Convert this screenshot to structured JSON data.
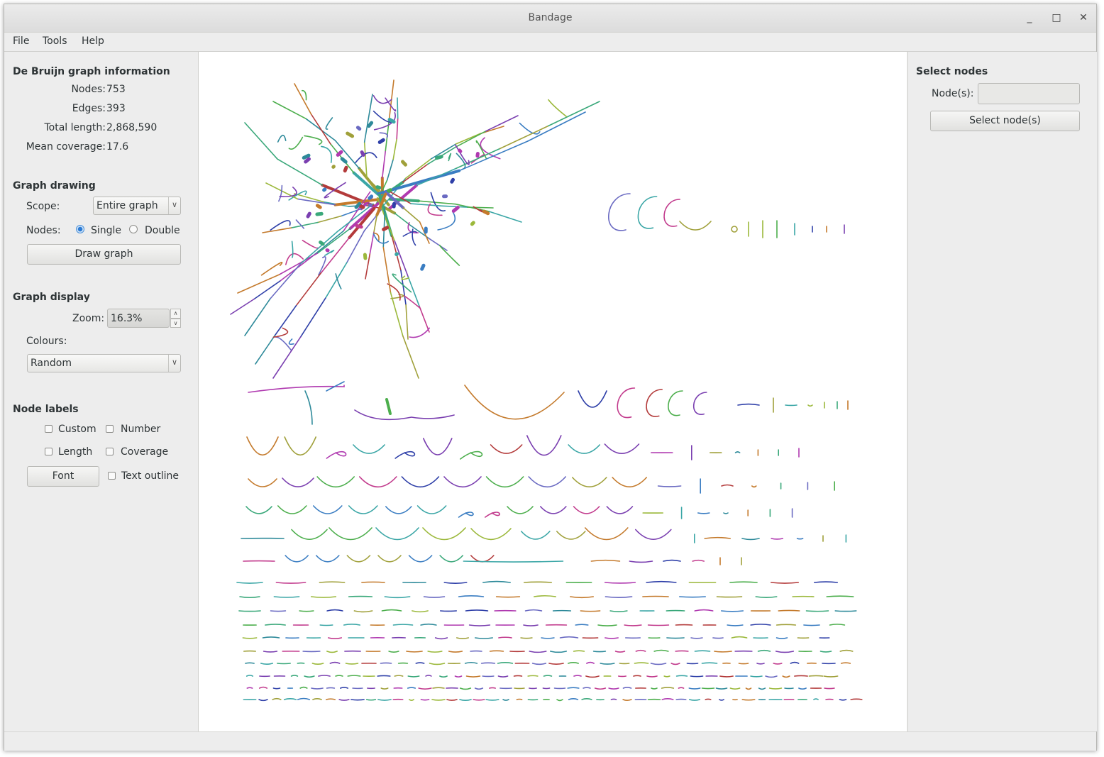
{
  "window": {
    "title": "Bandage",
    "controls": {
      "minimize": "_",
      "maximize": "□",
      "close": "✕"
    }
  },
  "menu": {
    "file": "File",
    "tools": "Tools",
    "help": "Help"
  },
  "info": {
    "heading": "De Bruijn graph information",
    "nodes_label": "Nodes:",
    "nodes_value": "753",
    "edges_label": "Edges:",
    "edges_value": "393",
    "total_length_label": "Total length:",
    "total_length_value": "2,868,590",
    "mean_coverage_label": "Mean coverage:",
    "mean_coverage_value": "17.6"
  },
  "drawing": {
    "heading": "Graph drawing",
    "scope_label": "Scope:",
    "scope_value": "Entire graph",
    "nodes_label": "Nodes:",
    "single": "Single",
    "double": "Double",
    "selected_mode": "Single",
    "draw_button": "Draw graph"
  },
  "display": {
    "heading": "Graph display",
    "zoom_label": "Zoom:",
    "zoom_value": "16.3%",
    "colours_label": "Colours:",
    "colours_value": "Random"
  },
  "labels": {
    "heading": "Node labels",
    "custom": "Custom",
    "number": "Number",
    "length": "Length",
    "coverage": "Coverage",
    "font_button": "Font",
    "text_outline": "Text outline"
  },
  "select": {
    "heading": "Select nodes",
    "nodes_label": "Node(s):",
    "nodes_value": "",
    "button": "Select node(s)"
  },
  "graph_palette": [
    "#3aa6a6",
    "#9bb83a",
    "#7a3fb0",
    "#2e3fa8",
    "#b33a3a",
    "#4cae4c",
    "#c23b8d",
    "#3a7dc2",
    "#a0a03a",
    "#c47a2c",
    "#3aa87a",
    "#6a6ac2",
    "#2e8a9a",
    "#b03ab0"
  ]
}
